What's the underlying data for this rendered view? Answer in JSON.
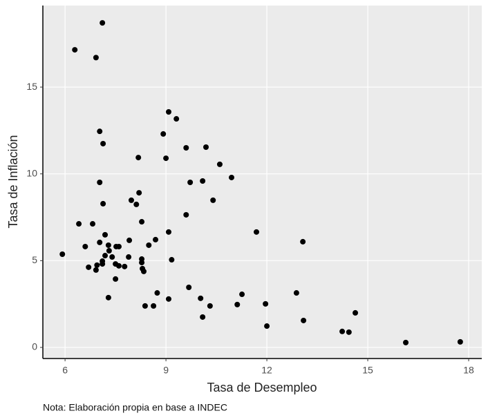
{
  "chart_data": {
    "type": "scatter",
    "x_label": "Tasa de Desempleo",
    "y_label": "Tasa de Inflación",
    "caption": "Nota: Elaboración propia en base a INDEC",
    "color": "#000000",
    "grid": true,
    "xlim": [
      5.34,
      18.39
    ],
    "xticks": [
      6,
      9,
      12,
      15,
      18
    ],
    "ylim": [
      -0.64,
      19.7
    ],
    "yticks": [
      0,
      5,
      10,
      15
    ],
    "x": [
      7.11,
      6.29,
      6.92,
      9.08,
      9.31,
      7.03,
      8.92,
      7.13,
      9.6,
      10.19,
      8.18,
      9.0,
      10.6,
      10.95,
      7.03,
      10.09,
      9.72,
      8.2,
      7.97,
      10.4,
      8.12,
      7.13,
      9.6,
      8.28,
      6.41,
      6.82,
      7.19,
      9.08,
      11.69,
      13.07,
      8.69,
      7.91,
      7.03,
      7.29,
      8.49,
      6.6,
      7.52,
      7.6,
      7.31,
      7.19,
      7.4,
      7.89,
      5.92,
      8.28,
      9.17,
      7.11,
      7.11,
      8.28,
      7.5,
      6.95,
      7.6,
      7.77,
      6.7,
      8.3,
      6.92,
      8.34,
      7.5,
      9.68,
      11.26,
      12.88,
      8.74,
      7.29,
      9.08,
      10.03,
      11.12,
      11.96,
      10.31,
      8.38,
      8.63,
      14.63,
      10.09,
      12.0,
      13.09,
      14.24,
      14.44,
      16.13,
      17.75
    ],
    "values": [
      18.7,
      17.15,
      16.7,
      13.57,
      13.17,
      12.45,
      12.3,
      11.74,
      11.5,
      11.54,
      10.94,
      10.9,
      10.55,
      9.79,
      9.51,
      9.59,
      9.51,
      8.91,
      8.48,
      8.48,
      8.24,
      8.28,
      7.64,
      7.24,
      7.12,
      7.12,
      6.49,
      6.65,
      6.65,
      6.09,
      6.21,
      6.17,
      6.05,
      5.89,
      5.89,
      5.81,
      5.81,
      5.81,
      5.57,
      5.29,
      5.21,
      5.21,
      5.37,
      5.09,
      5.05,
      4.97,
      4.81,
      4.89,
      4.81,
      4.74,
      4.7,
      4.66,
      4.62,
      4.54,
      4.46,
      4.38,
      3.94,
      3.46,
      3.06,
      3.14,
      3.14,
      2.87,
      2.79,
      2.83,
      2.47,
      2.51,
      2.39,
      2.39,
      2.39,
      1.99,
      1.75,
      1.23,
      1.55,
      0.92,
      0.88,
      0.28,
      0.32
    ]
  }
}
